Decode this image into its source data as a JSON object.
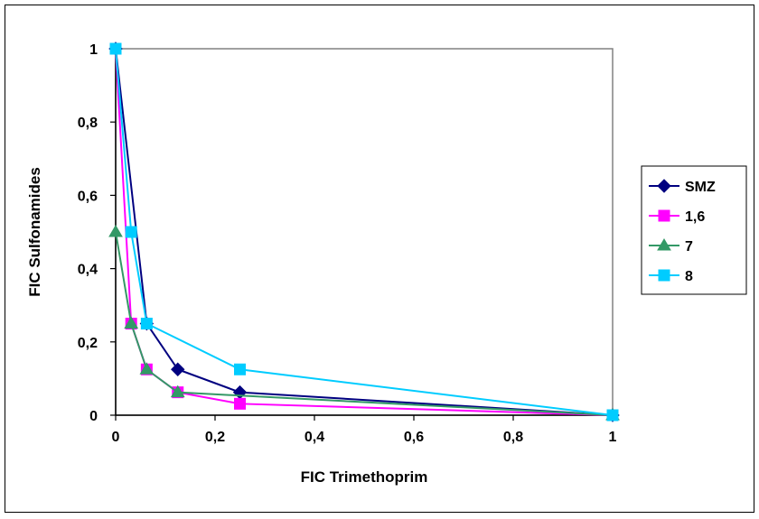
{
  "chart_data": {
    "type": "line",
    "xlabel": "FIC Trimethoprim",
    "ylabel": "FIC Sulfonamides",
    "xlim": [
      0,
      1
    ],
    "ylim": [
      0,
      1
    ],
    "x_tick_values": [
      0,
      0.2,
      0.4,
      0.6,
      0.8,
      1
    ],
    "x_tick_labels": [
      "0",
      "0,2",
      "0,4",
      "0,6",
      "0,8",
      "1"
    ],
    "y_tick_values": [
      0,
      0.2,
      0.4,
      0.6,
      0.8,
      1
    ],
    "y_tick_labels": [
      "0",
      "0,2",
      "0,4",
      "0,6",
      "0,8",
      "1"
    ],
    "grid": false,
    "legend_position": "right",
    "series": [
      {
        "name": "SMZ",
        "color": "#000080",
        "marker": "diamond",
        "x": [
          0,
          0.0625,
          0.125,
          0.25,
          1
        ],
        "y": [
          1,
          0.25,
          0.125,
          0.0625,
          0
        ]
      },
      {
        "name": "1,6",
        "color": "#FF00FF",
        "marker": "square",
        "x": [
          0,
          0.03125,
          0.0625,
          0.125,
          0.25,
          1
        ],
        "y": [
          1,
          0.25,
          0.125,
          0.0625,
          0.03125,
          0
        ]
      },
      {
        "name": "7",
        "color": "#339966",
        "marker": "triangle",
        "x": [
          0,
          0.03125,
          0.0625,
          0.125,
          1
        ],
        "y": [
          0.5,
          0.25,
          0.125,
          0.0625,
          0
        ]
      },
      {
        "name": "8",
        "color": "#00CCFF",
        "marker": "square",
        "x": [
          0,
          0.03125,
          0.0625,
          0.25,
          1
        ],
        "y": [
          1,
          0.5,
          0.25,
          0.125,
          0
        ]
      }
    ]
  }
}
